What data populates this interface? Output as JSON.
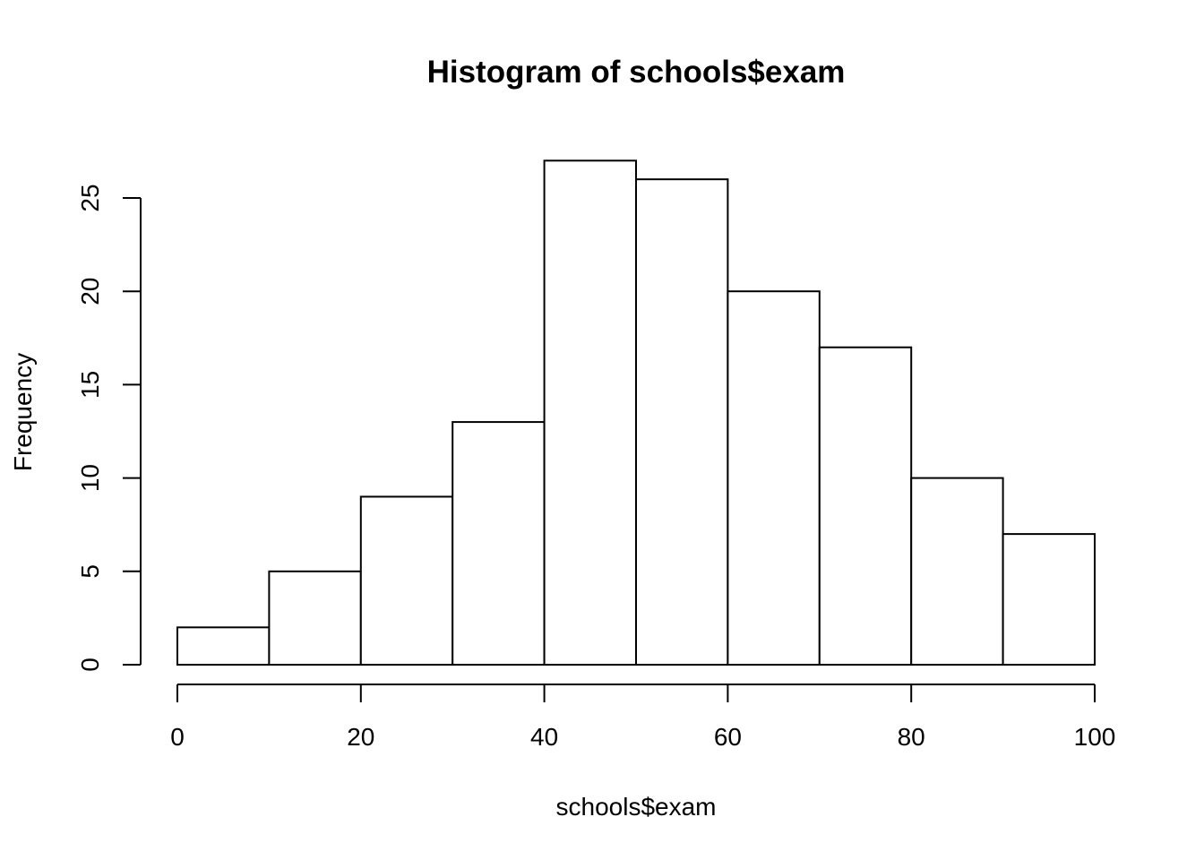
{
  "chart_data": {
    "type": "bar",
    "subtype": "histogram",
    "title": "Histogram of schools$exam",
    "xlabel": "schools$exam",
    "ylabel": "Frequency",
    "bins": [
      {
        "start": 0,
        "end": 10,
        "count": 2
      },
      {
        "start": 10,
        "end": 20,
        "count": 5
      },
      {
        "start": 20,
        "end": 30,
        "count": 9
      },
      {
        "start": 30,
        "end": 40,
        "count": 13
      },
      {
        "start": 40,
        "end": 50,
        "count": 27
      },
      {
        "start": 50,
        "end": 60,
        "count": 26
      },
      {
        "start": 60,
        "end": 70,
        "count": 20
      },
      {
        "start": 70,
        "end": 80,
        "count": 17
      },
      {
        "start": 80,
        "end": 90,
        "count": 10
      },
      {
        "start": 90,
        "end": 100,
        "count": 7
      }
    ],
    "xlim": [
      0,
      100
    ],
    "ylim": [
      0,
      25
    ],
    "x_ticks": [
      0,
      20,
      40,
      60,
      80,
      100
    ],
    "y_ticks": [
      0,
      5,
      10,
      15,
      20,
      25
    ],
    "grid": false,
    "colors": {
      "bar_fill": "#ffffff",
      "bar_stroke": "#000000"
    }
  }
}
